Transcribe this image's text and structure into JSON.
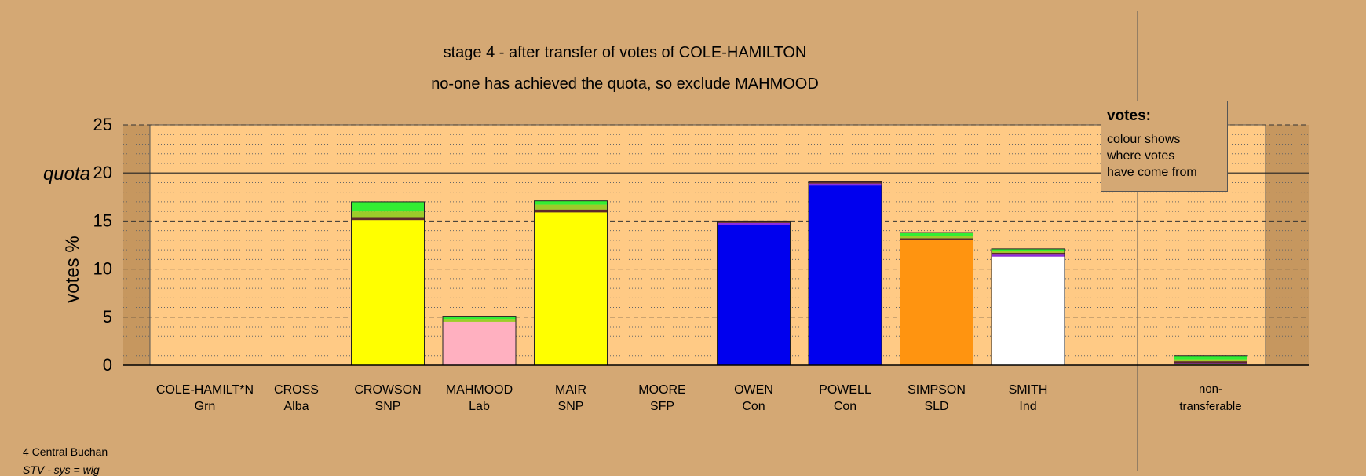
{
  "chart_data": {
    "type": "bar",
    "stacked": true,
    "title": "stage 4 - after transfer of votes of COLE-HAMILTON",
    "subtitle": "no-one has achieved the quota, so exclude MAHMOOD",
    "ylabel": "votes %",
    "ylim": [
      0,
      25
    ],
    "yticks": [
      0,
      5,
      10,
      15,
      20,
      25
    ],
    "quota_label": "quota",
    "quota": 20,
    "candidates": [
      {
        "name": "COLE-HAMILT*N",
        "party": "Grn",
        "segments": []
      },
      {
        "name": "CROSS",
        "party": "Alba",
        "segments": []
      },
      {
        "name": "CROWSON",
        "party": "SNP",
        "segments": [
          {
            "color": "#ffff00",
            "value": 15.1
          },
          {
            "color": "#5c2a2a",
            "value": 0.3
          },
          {
            "color": "#9ccc2a",
            "value": 0.6
          },
          {
            "color": "#33ee33",
            "value": 1.0
          }
        ]
      },
      {
        "name": "MAHMOOD",
        "party": "Lab",
        "segments": [
          {
            "color": "#ffb0c0",
            "value": 4.5
          },
          {
            "color": "#9ccc2a",
            "value": 0.3
          },
          {
            "color": "#33ee33",
            "value": 0.3
          }
        ]
      },
      {
        "name": "MAIR",
        "party": "SNP",
        "segments": [
          {
            "color": "#ffff00",
            "value": 15.9
          },
          {
            "color": "#5c2a2a",
            "value": 0.3
          },
          {
            "color": "#9ccc2a",
            "value": 0.5
          },
          {
            "color": "#33ee33",
            "value": 0.4
          }
        ]
      },
      {
        "name": "MOORE",
        "party": "SFP",
        "segments": []
      },
      {
        "name": "OWEN",
        "party": "Con",
        "segments": [
          {
            "color": "#0000ee",
            "value": 14.6
          },
          {
            "color": "#8a2be2",
            "value": 0.2
          },
          {
            "color": "#5c2a2a",
            "value": 0.2
          }
        ]
      },
      {
        "name": "POWELL",
        "party": "Con",
        "segments": [
          {
            "color": "#0000ee",
            "value": 18.7
          },
          {
            "color": "#8a2be2",
            "value": 0.2
          },
          {
            "color": "#5c2a2a",
            "value": 0.2
          }
        ]
      },
      {
        "name": "SIMPSON",
        "party": "SLD",
        "segments": [
          {
            "color": "#ff9410",
            "value": 13.0
          },
          {
            "color": "#5c2a2a",
            "value": 0.2
          },
          {
            "color": "#9ccc2a",
            "value": 0.2
          },
          {
            "color": "#33ee33",
            "value": 0.4
          }
        ]
      },
      {
        "name": "SMITH",
        "party": "Ind",
        "segments": [
          {
            "color": "#ffffff",
            "value": 11.3
          },
          {
            "color": "#8a2be2",
            "value": 0.2
          },
          {
            "color": "#5c2a2a",
            "value": 0.2
          },
          {
            "color": "#9ccc2a",
            "value": 0.2
          },
          {
            "color": "#33ee33",
            "value": 0.2
          }
        ]
      }
    ],
    "nontransferable": {
      "label_line1": "non-",
      "label_line2": "transferable",
      "segments": [
        {
          "color": "#9ccc2a",
          "value": 0.1
        },
        {
          "color": "#8a2be2",
          "value": 0.1
        },
        {
          "color": "#5c2a2a",
          "value": 0.2
        },
        {
          "color": "#9ccc2a",
          "value": 0.2
        },
        {
          "color": "#33ee33",
          "value": 0.4
        }
      ]
    },
    "colors": {
      "background": "#d4a874",
      "plot_background": "#ffca85",
      "shade": "#c6975f"
    }
  },
  "legend": {
    "title": "votes:",
    "lines": [
      "colour shows",
      "where votes",
      "have come from"
    ]
  },
  "footer": {
    "line1": "4 Central Buchan",
    "line2": "STV - sys = wig"
  }
}
